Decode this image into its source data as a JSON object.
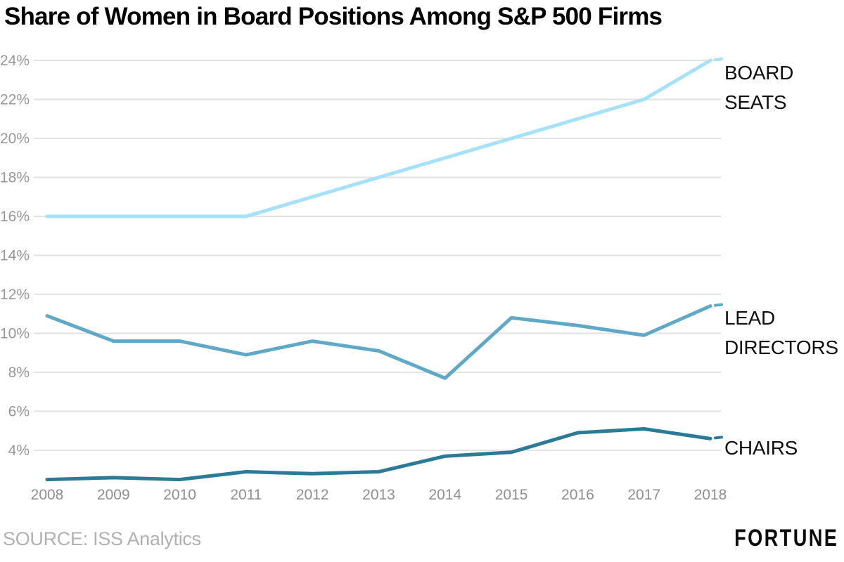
{
  "title": "Share of Women in Board Positions Among S&P 500 Firms",
  "source": "SOURCE: ISS Analytics",
  "logo": "FORTUNE",
  "colors": {
    "board_seats_line": "#a5e1f8",
    "lead_directors_line": "#5fa9c8",
    "chairs_line": "#2b7a97",
    "gridline": "#e2e2e2",
    "axis_text": "#979797"
  },
  "chart_data": {
    "type": "line",
    "title": "Share of Women in Board Positions Among S&P 500 Firms",
    "xlabel": "",
    "ylabel": "",
    "x": [
      2008,
      2009,
      2010,
      2011,
      2012,
      2013,
      2014,
      2015,
      2016,
      2017,
      2018
    ],
    "series": [
      {
        "name": "BOARD SEATS",
        "color": "#a5e1f8",
        "values": [
          16,
          16,
          16,
          16,
          17,
          18,
          19,
          20,
          21,
          22,
          24
        ]
      },
      {
        "name": "LEAD DIRECTORS",
        "color": "#5fa9c8",
        "values": [
          10.9,
          9.6,
          9.6,
          8.9,
          9.6,
          9.1,
          7.7,
          10.8,
          10.4,
          9.9,
          11.4
        ]
      },
      {
        "name": "CHAIRS",
        "color": "#2b7a97",
        "values": [
          2.5,
          2.6,
          2.5,
          2.9,
          2.8,
          2.9,
          3.7,
          3.9,
          4.9,
          5.1,
          4.6
        ]
      }
    ],
    "y_ticks": [
      24,
      22,
      20,
      18,
      16,
      14,
      12,
      10,
      8,
      6,
      4
    ],
    "y_tick_suffix": "%",
    "ylim": [
      2,
      24.5
    ],
    "grid": true,
    "legend_position": "labels-right-of-line-ends"
  }
}
